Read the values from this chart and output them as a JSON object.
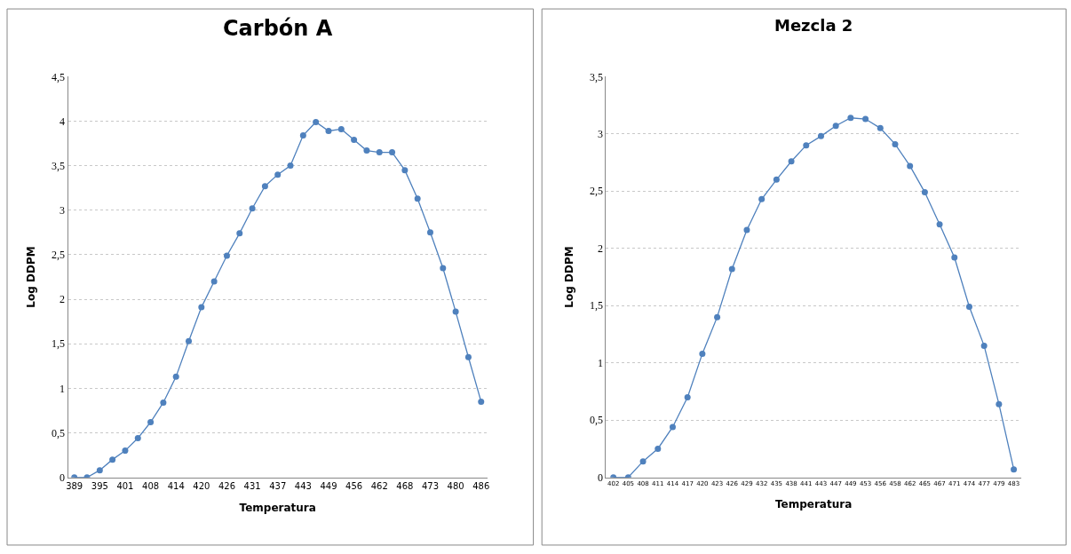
{
  "chart_data": [
    {
      "type": "line",
      "title": "Carbón A",
      "xlabel": "Temperatura",
      "ylabel": "Log DDPM",
      "categories": [
        "389",
        null,
        "395",
        null,
        "401",
        null,
        "408",
        null,
        "414",
        null,
        "420",
        null,
        "426",
        null,
        "431",
        null,
        "437",
        null,
        "443",
        null,
        "449",
        null,
        "456",
        null,
        "462",
        null,
        "468",
        null,
        "473",
        null,
        "480",
        null,
        "486"
      ],
      "series": [
        {
          "color": "#4f81bd",
          "values": [
            0,
            0,
            0.08,
            0.2,
            0.3,
            0.44,
            0.62,
            0.84,
            1.13,
            1.53,
            1.91,
            2.2,
            2.49,
            2.74,
            3.02,
            3.27,
            3.4,
            3.5,
            3.84,
            3.99,
            3.89,
            3.91,
            3.79,
            3.67,
            3.65,
            3.65,
            3.45,
            3.13,
            2.75,
            2.35,
            1.86,
            1.35,
            0.85
          ]
        }
      ],
      "ylim": [
        0,
        4.5
      ],
      "yticks": [
        0,
        {
          "value": 0.5,
          "label": "0,5"
        },
        1,
        {
          "value": 1.5,
          "label": "1,5"
        },
        2,
        {
          "value": 2.5,
          "label": "2,5"
        },
        3,
        {
          "value": 3.5,
          "label": "3,5"
        },
        4,
        {
          "value": 4.5,
          "label": "4,5"
        }
      ],
      "grid": "y",
      "marker": "circle",
      "line_style": "solid"
    },
    {
      "type": "line",
      "title": "Mezcla 2",
      "xlabel": "Temperatura",
      "ylabel": "Log DDPM",
      "categories": [
        "402",
        "405",
        "408",
        "411",
        "414",
        "417",
        "420",
        "423",
        "426",
        "429",
        "432",
        "435",
        "438",
        "441",
        "443",
        "447",
        "449",
        "453",
        "456",
        "458",
        "462",
        "465",
        "467",
        "471",
        "474",
        "477",
        "479",
        "483"
      ],
      "series": [
        {
          "color": "#4f81bd",
          "values": [
            0,
            0,
            0.14,
            0.25,
            0.44,
            0.7,
            1.08,
            1.4,
            1.82,
            2.16,
            2.43,
            2.6,
            2.76,
            2.9,
            2.98,
            3.07,
            3.14,
            3.13,
            3.05,
            2.91,
            2.72,
            2.49,
            2.21,
            1.92,
            1.49,
            1.15,
            0.64,
            0.07
          ]
        }
      ],
      "ylim": [
        0,
        3.5
      ],
      "yticks": [
        0,
        {
          "value": 0.5,
          "label": "0,5"
        },
        1,
        {
          "value": 1.5,
          "label": "1,5"
        },
        2,
        {
          "value": 2.5,
          "label": "2,5"
        },
        3,
        {
          "value": 3.5,
          "label": "3,5"
        }
      ],
      "grid": "y",
      "marker": "circle",
      "line_style": "solid"
    }
  ]
}
